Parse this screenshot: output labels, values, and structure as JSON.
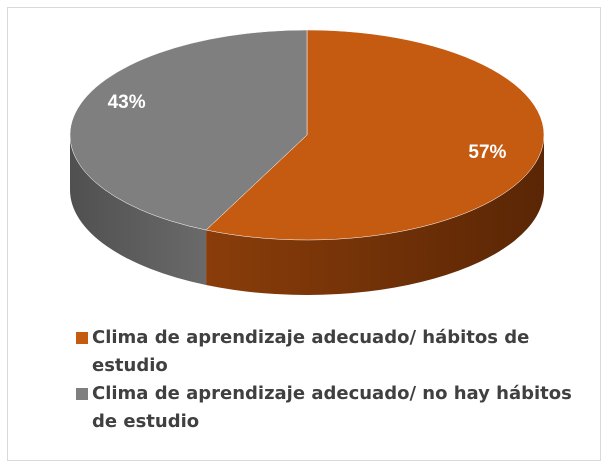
{
  "chart_data": {
    "type": "pie",
    "categories": [
      "Clima de aprendizaje adecuado/ hábitos de estudio",
      "Clima de aprendizaje adecuado/ no hay hábitos de estudio"
    ],
    "values": [
      57,
      43
    ],
    "value_labels": [
      "57%",
      "43%"
    ],
    "colors": [
      "#c55a11",
      "#7f7f7f"
    ],
    "legend": "bottom"
  }
}
